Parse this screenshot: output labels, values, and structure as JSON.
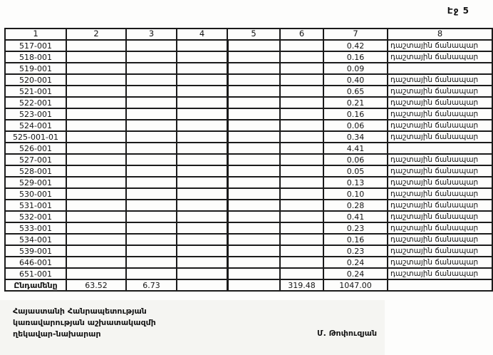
{
  "page": {
    "label": "Էջ 5"
  },
  "table": {
    "headers": [
      "1",
      "2",
      "3",
      "4",
      "5",
      "6",
      "7",
      "8"
    ],
    "rows": [
      [
        "517-001",
        "",
        "",
        "",
        "",
        "",
        "0.42",
        "դաշտային ճանապար"
      ],
      [
        "518-001",
        "",
        "",
        "",
        "",
        "",
        "0.16",
        "դաշտային ճանապար"
      ],
      [
        "519-001",
        "",
        "",
        "",
        "",
        "",
        "0.09",
        ""
      ],
      [
        "520-001",
        "",
        "",
        "",
        "",
        "",
        "0.40",
        "դաշտային ճանապար"
      ],
      [
        "521-001",
        "",
        "",
        "",
        "",
        "",
        "0.65",
        "դաշտային ճանապար"
      ],
      [
        "522-001",
        "",
        "",
        "",
        "",
        "",
        "0.21",
        "դաշտային ճանապար"
      ],
      [
        "523-001",
        "",
        "",
        "",
        "",
        "",
        "0.16",
        "դաշտային ճանապար"
      ],
      [
        "524-001",
        "",
        "",
        "",
        "",
        "",
        "0.06",
        "դաշտային ճանապար"
      ],
      [
        "525-001-01",
        "",
        "",
        "",
        "",
        "",
        "0.34",
        "դաշտային ճանապար"
      ],
      [
        "526-001",
        "",
        "",
        "",
        "",
        "",
        "4.41",
        ""
      ],
      [
        "527-001",
        "",
        "",
        "",
        "",
        "",
        "0.06",
        "դաշտային ճանապար"
      ],
      [
        "528-001",
        "",
        "",
        "",
        "",
        "",
        "0.05",
        "դաշտային ճանապար"
      ],
      [
        "529-001",
        "",
        "",
        "",
        "",
        "",
        "0.13",
        "դաշտային ճանապար"
      ],
      [
        "530-001",
        "",
        "",
        "",
        "",
        "",
        "0.10",
        "դաշտային ճանապար"
      ],
      [
        "531-001",
        "",
        "",
        "",
        "",
        "",
        "0.28",
        "դաշտային ճանապար"
      ],
      [
        "532-001",
        "",
        "",
        "",
        "",
        "",
        "0.41",
        "դաշտային ճանապար"
      ],
      [
        "533-001",
        "",
        "",
        "",
        "",
        "",
        "0.23",
        "դաշտային ճանապար"
      ],
      [
        "534-001",
        "",
        "",
        "",
        "",
        "",
        "0.16",
        "դաշտային ճանապար"
      ],
      [
        "539-001",
        "",
        "",
        "",
        "",
        "",
        "0.23",
        "դաշտային ճանապար"
      ],
      [
        "646-001",
        "",
        "",
        "",
        "",
        "",
        "0.24",
        "դաշտային ճանապար"
      ],
      [
        "651-001",
        "",
        "",
        "",
        "",
        "",
        "0.24",
        "դաշտային ճանապար"
      ]
    ],
    "total_row": [
      "Ընդամենը",
      "63.52",
      "6.73",
      "",
      "",
      "319.48",
      "1047.00",
      ""
    ]
  },
  "footer": {
    "lines": [
      "Հայաստանի Հանրապետության",
      "կառավարության աշխատակազմի",
      "ղեկավար-նախարար"
    ],
    "signature": "Մ. Թոփուզյան"
  }
}
